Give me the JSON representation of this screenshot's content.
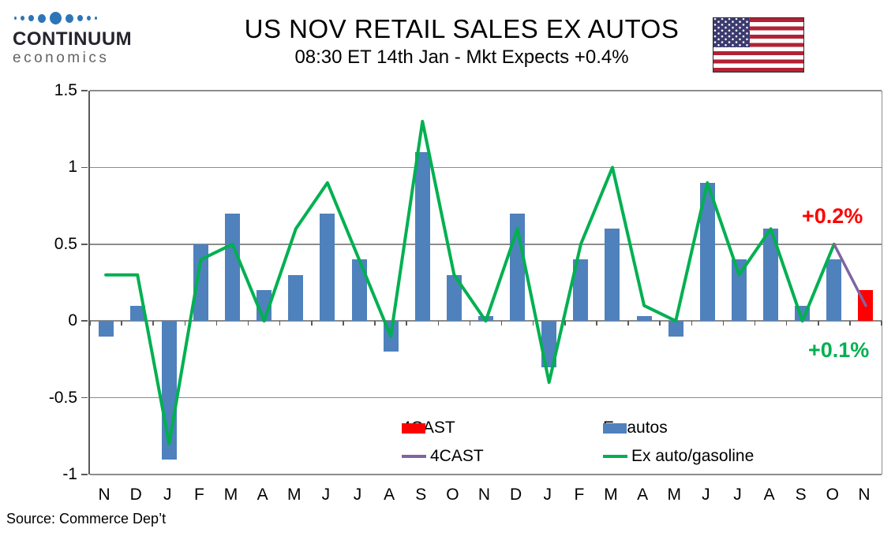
{
  "header": {
    "logo_line1": "CONTINUUM",
    "logo_line2": "economics",
    "title": "US NOV RETAIL SALES EX AUTOS",
    "subtitle": "08:30 ET 14th Jan - Mkt Expects +0.4%"
  },
  "colors": {
    "ex_autos_blue": "#4F81BD",
    "forecast_red": "#FF0000",
    "ex_auto_gas_green": "#00B050",
    "forecast_purple": "#8064A2",
    "grid_gray": "#8C8C8C"
  },
  "chart_data": {
    "type": "bar",
    "subtype": "bar+line combo, monthly",
    "categories": [
      "N",
      "D",
      "J",
      "F",
      "M",
      "A",
      "M",
      "J",
      "J",
      "A",
      "S",
      "O",
      "N",
      "D",
      "J",
      "F",
      "M",
      "A",
      "M",
      "J",
      "J",
      "A",
      "S",
      "O",
      "N"
    ],
    "series": [
      {
        "name": "Ex autos",
        "render": "bar",
        "color": "#4F81BD",
        "values": [
          -0.1,
          0.1,
          -0.9,
          0.5,
          0.7,
          0.2,
          0.3,
          0.7,
          0.4,
          -0.2,
          1.1,
          0.3,
          0.03,
          0.7,
          -0.3,
          0.4,
          0.6,
          0.03,
          -0.1,
          0.9,
          0.4,
          0.6,
          0.1,
          0.4,
          null
        ]
      },
      {
        "name": "4CAST",
        "render": "bar",
        "color": "#FF0000",
        "values": [
          null,
          null,
          null,
          null,
          null,
          null,
          null,
          null,
          null,
          null,
          null,
          null,
          null,
          null,
          null,
          null,
          null,
          null,
          null,
          null,
          null,
          null,
          null,
          null,
          0.2
        ]
      },
      {
        "name": "Ex auto/gasoline",
        "render": "line",
        "color": "#00B050",
        "width": 4,
        "values": [
          0.3,
          0.3,
          -0.8,
          0.4,
          0.5,
          0.0,
          0.6,
          0.9,
          0.4,
          -0.1,
          1.3,
          0.3,
          0.0,
          0.6,
          -0.4,
          0.5,
          1.0,
          0.1,
          0.0,
          0.9,
          0.3,
          0.6,
          0.0,
          0.5,
          null
        ]
      },
      {
        "name": "4CAST",
        "render": "line",
        "color": "#8064A2",
        "width": 3.5,
        "values": [
          null,
          null,
          null,
          null,
          null,
          null,
          null,
          null,
          null,
          null,
          null,
          null,
          null,
          null,
          null,
          null,
          null,
          null,
          null,
          null,
          null,
          null,
          null,
          0.5,
          0.1
        ]
      }
    ],
    "title": "US NOV RETAIL SALES EX AUTOS",
    "xlabel": "",
    "ylabel": "",
    "ylim": [
      -1,
      1.5
    ],
    "yticks": [
      1.5,
      1,
      0.5,
      0,
      -0.5,
      -1
    ],
    "ytick_labels": [
      "1.5",
      "1",
      "0.5",
      "0",
      "-0.5",
      "-1"
    ],
    "grid": true,
    "legend_position": "bottom-center"
  },
  "legend": {
    "items": [
      {
        "label": "4CAST",
        "swatch": "bar",
        "color": "#FF0000"
      },
      {
        "label": "Ex autos",
        "swatch": "bar",
        "color": "#4F81BD"
      },
      {
        "label": "4CAST",
        "swatch": "line",
        "color": "#8064A2"
      },
      {
        "label": "Ex auto/gasoline",
        "swatch": "line",
        "color": "#00B050"
      }
    ]
  },
  "annotations": {
    "bar_forecast": {
      "text": "+0.2%",
      "color": "#FF0000"
    },
    "line_forecast": {
      "text": "+0.1%",
      "color": "#00B050"
    }
  },
  "source": "Source: Commerce Dep’t"
}
